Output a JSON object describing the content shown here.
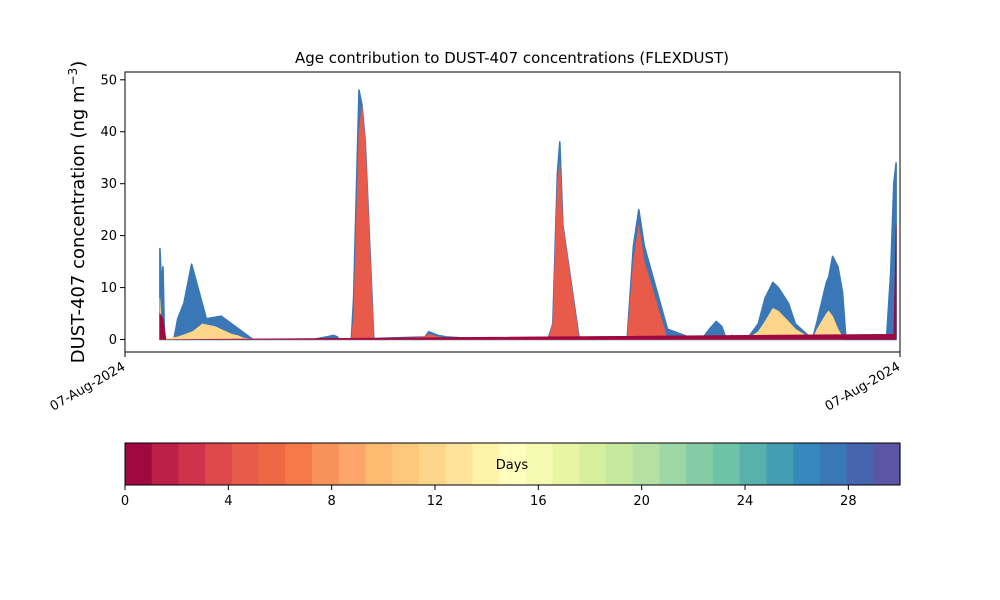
{
  "chart_data": {
    "type": "area",
    "title": "Age contribution to DUST-407 concentrations (FLEXDUST)",
    "xlabel": "",
    "ylabel": "DUST-407 concentration (ng m⁻³)",
    "ylabel_parts": {
      "main": "DUST-407 concentration (ng m",
      "exp": "−3",
      "close": ")"
    },
    "x_tick_labels": [
      "07-Aug-2024",
      "07-Aug-2024"
    ],
    "xlim": [
      0,
      100
    ],
    "ylim": [
      -2.4,
      51.5
    ],
    "yticks": [
      0,
      10,
      20,
      30,
      40,
      50
    ],
    "grid": false,
    "colorbar": {
      "label": "Days",
      "ticks": [
        0,
        4,
        8,
        12,
        16,
        20,
        24,
        28
      ],
      "range": [
        0,
        30
      ],
      "colors": [
        "#a0093f",
        "#bd2046",
        "#cf324b",
        "#de4a4c",
        "#e85a4a",
        "#ee6846",
        "#f57a48",
        "#f8925b",
        "#fca56c",
        "#fdbb71",
        "#fec87c",
        "#fed68b",
        "#fee39b",
        "#fff2a9",
        "#fffebe",
        "#f4fab1",
        "#e8f6a4",
        "#d7ef9c",
        "#c5e89e",
        "#b4e1a1",
        "#9cd7a4",
        "#83cca5",
        "#6ec2a5",
        "#58b2ab",
        "#449eb3",
        "#3589bc",
        "#3a77b6",
        "#4665ae",
        "#5a55a5"
      ]
    },
    "series": [
      {
        "age_bin": "0-1",
        "color": "#a0093f",
        "x": [
          4.5,
          4.9,
          5.3,
          5.7,
          6.3,
          98.8,
          99.2,
          99.5
        ],
        "y": [
          5.0,
          4.0,
          0,
          0,
          0,
          1.0,
          1.0,
          22.0
        ]
      },
      {
        "age_bin": "4-8",
        "color": "#e85a4a",
        "x": [
          29.2,
          29.5,
          30.2,
          30.6,
          31.0,
          32.1,
          38.7,
          39.2,
          40.4,
          41.5,
          44.8,
          54.6,
          55.2,
          55.8,
          56.1,
          56.5,
          58.6,
          64.8,
          65.6,
          66.3,
          67.0,
          70.0
        ],
        "y": [
          0,
          4,
          40,
          45,
          38,
          0,
          0.5,
          1.0,
          0.5,
          0.2,
          0,
          0,
          3,
          30,
          34,
          22,
          0,
          0.3,
          15,
          22,
          15,
          0
        ]
      },
      {
        "age_bin": "10-16",
        "color": "#fed68b",
        "x": [
          4.5,
          4.8,
          6.8,
          8.7,
          10.0,
          11.6,
          13.8,
          14.5,
          15.3,
          16.7,
          80.2,
          81.7,
          82.6,
          83.6,
          84.3,
          85.6,
          86.5,
          88.7,
          89.3,
          90.5,
          90.8,
          91.3,
          92.0,
          92.6,
          93.0
        ],
        "y": [
          8,
          0,
          0.5,
          1.5,
          3.0,
          2.5,
          1.0,
          0.8,
          0.3,
          0,
          0,
          1.5,
          3.5,
          6.0,
          5.5,
          3.5,
          2.0,
          0,
          2.0,
          5.0,
          5.5,
          4.5,
          2.0,
          0.5,
          0
        ]
      },
      {
        "age_bin": "16-30",
        "color": "#3a77b6",
        "x": [
          4.5,
          4.7,
          4.9,
          5.1,
          5.3,
          5.6,
          6.3,
          6.8,
          7.6,
          8.6,
          10.5,
          12.4,
          14.7,
          16.5,
          24.2,
          26.0,
          26.9,
          27.4,
          27.6,
          28.4,
          29.2,
          29.5,
          30.2,
          30.6,
          31.0,
          32.1,
          38.7,
          39.2,
          40.4,
          41.5,
          44.8,
          54.6,
          55.2,
          55.8,
          56.1,
          56.5,
          58.6,
          64.8,
          65.6,
          66.3,
          67.0,
          70.0,
          72.7,
          73.5,
          74.4,
          75.4,
          76.3,
          77.0,
          77.6,
          78.3,
          80.2,
          81.7,
          82.6,
          83.6,
          84.3,
          85.6,
          86.5,
          88.7,
          89.3,
          90.5,
          90.8,
          91.3,
          92.0,
          92.6,
          93.0,
          95.6,
          96.6,
          97.5,
          98.3,
          98.8,
          99.2,
          99.5
        ],
        "y": [
          17.5,
          11,
          14,
          0,
          0,
          0,
          0,
          4,
          7,
          14.5,
          4,
          4.5,
          2,
          0,
          0,
          0.5,
          0.8,
          0.5,
          0,
          0,
          0,
          8,
          48,
          45,
          38,
          0.2,
          0.5,
          1.5,
          0.8,
          0.5,
          0.2,
          0.2,
          3,
          32,
          38,
          22,
          0.3,
          0.3,
          18,
          25,
          18,
          2,
          0.5,
          0.3,
          0,
          2,
          3.5,
          2.5,
          0,
          0.8,
          0,
          3,
          8,
          11,
          10,
          7,
          3,
          0,
          3.5,
          11,
          12,
          16,
          14,
          9,
          0.5,
          0,
          0,
          0,
          1,
          13,
          30,
          34
        ]
      }
    ]
  }
}
